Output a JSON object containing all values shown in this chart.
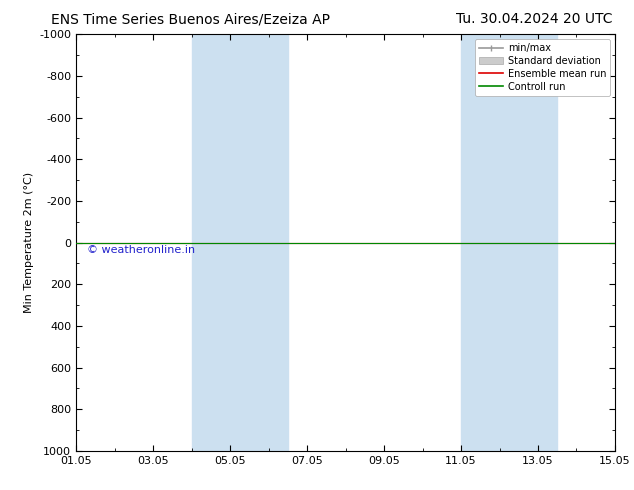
{
  "title_left": "ENS Time Series Buenos Aires/Ezeiza AP",
  "title_right": "Tu. 30.04.2024 20 UTC",
  "ylabel": "Min Temperature 2m (°C)",
  "ylim_bottom": -1000,
  "ylim_top": 1000,
  "yticks": [
    -1000,
    -800,
    -600,
    -400,
    -200,
    0,
    200,
    400,
    600,
    800,
    1000
  ],
  "xtick_labels": [
    "01.05",
    "03.05",
    "05.05",
    "07.05",
    "09.05",
    "11.05",
    "13.05",
    "15.05"
  ],
  "xtick_positions": [
    0,
    2,
    4,
    6,
    8,
    10,
    12,
    14
  ],
  "xlim": [
    0,
    14
  ],
  "shaded_regions": [
    {
      "xstart": 3.0,
      "xend": 5.5
    },
    {
      "xstart": 10.0,
      "xend": 12.5
    }
  ],
  "shade_color": "#cce0f0",
  "control_run_y": 0,
  "control_run_color": "#008800",
  "ensemble_mean_color": "#dd0000",
  "minmax_color": "#999999",
  "stddev_color": "#cccccc",
  "watermark_text": "© weatheronline.in",
  "watermark_color": "#2222cc",
  "background_color": "#ffffff",
  "plot_background": "#ffffff",
  "legend_entries": [
    "min/max",
    "Standard deviation",
    "Ensemble mean run",
    "Controll run"
  ],
  "legend_colors": [
    "#999999",
    "#cccccc",
    "#dd0000",
    "#008800"
  ],
  "title_fontsize": 10,
  "axis_fontsize": 8,
  "tick_fontsize": 8,
  "watermark_fontsize": 8
}
